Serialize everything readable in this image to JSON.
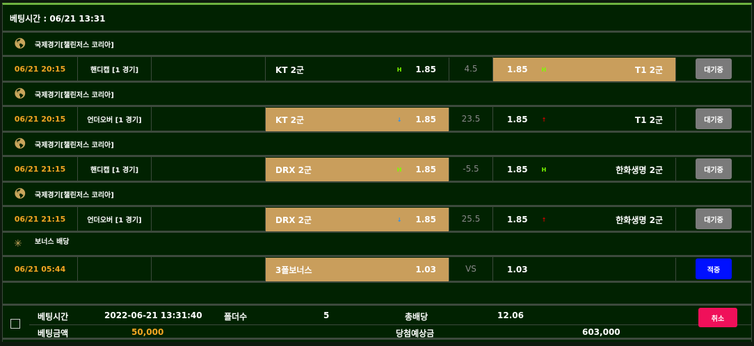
{
  "header": {
    "title": "베팅시간 : 06/21 13:31"
  },
  "colors": {
    "accent": "#6db33f",
    "selected": "#c99e5c",
    "date": "#f5a623",
    "cancel": "#f0105a",
    "hit": "#0010ff"
  },
  "groups": [
    {
      "league": "국제경기[챌린저스 코리아]",
      "icon": "globe-icon",
      "date": "06/21 20:15",
      "type": "핸디캡 [1 경기]",
      "home": "KT 2군",
      "home_odds": "1.85",
      "home_ind": "H",
      "line": "4.5",
      "away_odds": "1.85",
      "away_ind": "H",
      "away": "T1 2군",
      "selected": "away",
      "status": "대기중"
    },
    {
      "league": "국제경기[챌린저스 코리아]",
      "icon": "globe-icon",
      "date": "06/21 20:15",
      "type": "언더오버 [1 경기]",
      "home": "KT 2군",
      "home_odds": "1.85",
      "home_ind": "↓",
      "line": "23.5",
      "away_odds": "1.85",
      "away_ind": "↑",
      "away": "T1 2군",
      "selected": "home",
      "status": "대기중"
    },
    {
      "league": "국제경기[챌린저스 코리아]",
      "icon": "globe-icon",
      "date": "06/21 21:15",
      "type": "핸디캡 [1 경기]",
      "home": "DRX 2군",
      "home_odds": "1.85",
      "home_ind": "H",
      "line": "-5.5",
      "away_odds": "1.85",
      "away_ind": "H",
      "away": "한화생명 2군",
      "selected": "home",
      "status": "대기중"
    },
    {
      "league": "국제경기[챌린저스 코리아]",
      "icon": "globe-icon",
      "date": "06/21 21:15",
      "type": "언더오버 [1 경기]",
      "home": "DRX 2군",
      "home_odds": "1.85",
      "home_ind": "↓",
      "line": "25.5",
      "away_odds": "1.85",
      "away_ind": "↑",
      "away": "한화생명 2군",
      "selected": "home",
      "status": "대기중"
    },
    {
      "league": "보너스 배당",
      "icon": "sparkle-icon",
      "date": "06/21 05:44",
      "type": "",
      "home": "3폴보너스",
      "home_odds": "1.03",
      "home_ind": "",
      "line": "VS",
      "away_odds": "1.03",
      "away_ind": "",
      "away": "",
      "selected": "home",
      "status": "적중"
    }
  ],
  "summary": {
    "time_label": "베팅시간",
    "time": "2022-06-21 13:31:40",
    "folders_label": "폴더수",
    "folders": "5",
    "total_odds_label": "총배당",
    "total_odds": "12.06",
    "amount_label": "베팅금액",
    "amount": "50,000",
    "payout_label": "당첨예상금",
    "payout": "603,000",
    "cancel": "취소"
  }
}
